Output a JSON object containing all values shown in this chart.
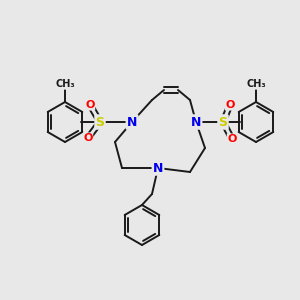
{
  "bg": "#e8e8e8",
  "atom_colors": {
    "N": "#0000ee",
    "S": "#cccc00",
    "O": "#ff0000",
    "C": "#1a1a1a"
  },
  "lw": 1.4,
  "figsize": [
    3.0,
    3.0
  ],
  "dpi": 100
}
